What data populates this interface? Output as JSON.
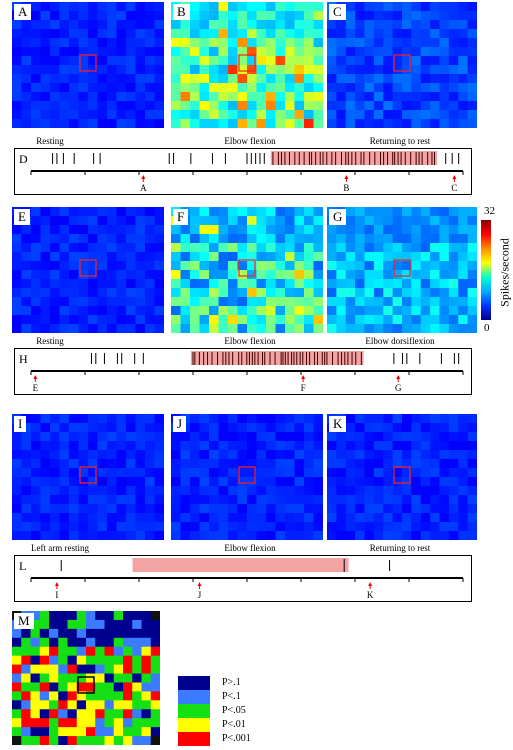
{
  "rows": [
    {
      "panels": [
        {
          "letter": "A",
          "caption": "Resting",
          "intensity": "low"
        },
        {
          "letter": "B",
          "caption": "Elbow flexion",
          "intensity": "high"
        },
        {
          "letter": "C",
          "caption": "Returning to rest",
          "intensity": "low2"
        }
      ],
      "timeline": {
        "letter": "D",
        "highlight": [
          0.555,
          0.94
        ],
        "spikes_outside": [
          0.05,
          0.06,
          0.075,
          0.1,
          0.145,
          0.16,
          0.32,
          0.33,
          0.37,
          0.42,
          0.45,
          0.5,
          0.51,
          0.52,
          0.53,
          0.54,
          0.96,
          0.975,
          0.99
        ],
        "dense": true,
        "markers": [
          {
            "label": "A",
            "pos": 0.26
          },
          {
            "label": "B",
            "pos": 0.73
          },
          {
            "label": "C",
            "pos": 0.98
          }
        ]
      }
    },
    {
      "panels": [
        {
          "letter": "E",
          "caption": "Resting",
          "intensity": "low"
        },
        {
          "letter": "F",
          "caption": "Elbow flexion",
          "intensity": "high2"
        },
        {
          "letter": "G",
          "caption": "Elbow dorsiflexion",
          "intensity": "mid"
        }
      ],
      "timeline": {
        "letter": "H",
        "highlight": [
          0.37,
          0.77
        ],
        "spikes_outside": [
          0.14,
          0.15,
          0.17,
          0.2,
          0.21,
          0.24,
          0.26,
          0.84,
          0.86,
          0.87,
          0.9,
          0.95,
          0.98,
          0.99
        ],
        "dense": true,
        "markers": [
          {
            "label": "E",
            "pos": 0.01
          },
          {
            "label": "F",
            "pos": 0.63
          },
          {
            "label": "G",
            "pos": 0.85
          }
        ]
      }
    },
    {
      "panels": [
        {
          "letter": "I",
          "caption": "Left arm resting",
          "intensity": "low"
        },
        {
          "letter": "J",
          "caption": "Elbow flexion",
          "intensity": "low"
        },
        {
          "letter": "K",
          "caption": "Returning to rest",
          "intensity": "low"
        }
      ],
      "timeline": {
        "letter": "L",
        "highlight": [
          0.235,
          0.735
        ],
        "spikes_outside": [
          0.07,
          0.83
        ],
        "dense": false,
        "single_inside": [
          0.725
        ],
        "markers": [
          {
            "label": "I",
            "pos": 0.06
          },
          {
            "label": "J",
            "pos": 0.39
          },
          {
            "label": "K",
            "pos": 0.785
          }
        ]
      }
    }
  ],
  "colorbar": {
    "max": "32",
    "min": "0",
    "label": "Spikes/second"
  },
  "stat_map": {
    "letter": "M"
  },
  "legend": [
    {
      "label": "P>.1",
      "color": "#00008f"
    },
    {
      "label": "P<.1",
      "color": "#3a7bff"
    },
    {
      "label": "P<.05",
      "color": "#14e014"
    },
    {
      "label": "P<.01",
      "color": "#ffff00"
    },
    {
      "label": "P<.001",
      "color": "#ff0000"
    }
  ]
}
